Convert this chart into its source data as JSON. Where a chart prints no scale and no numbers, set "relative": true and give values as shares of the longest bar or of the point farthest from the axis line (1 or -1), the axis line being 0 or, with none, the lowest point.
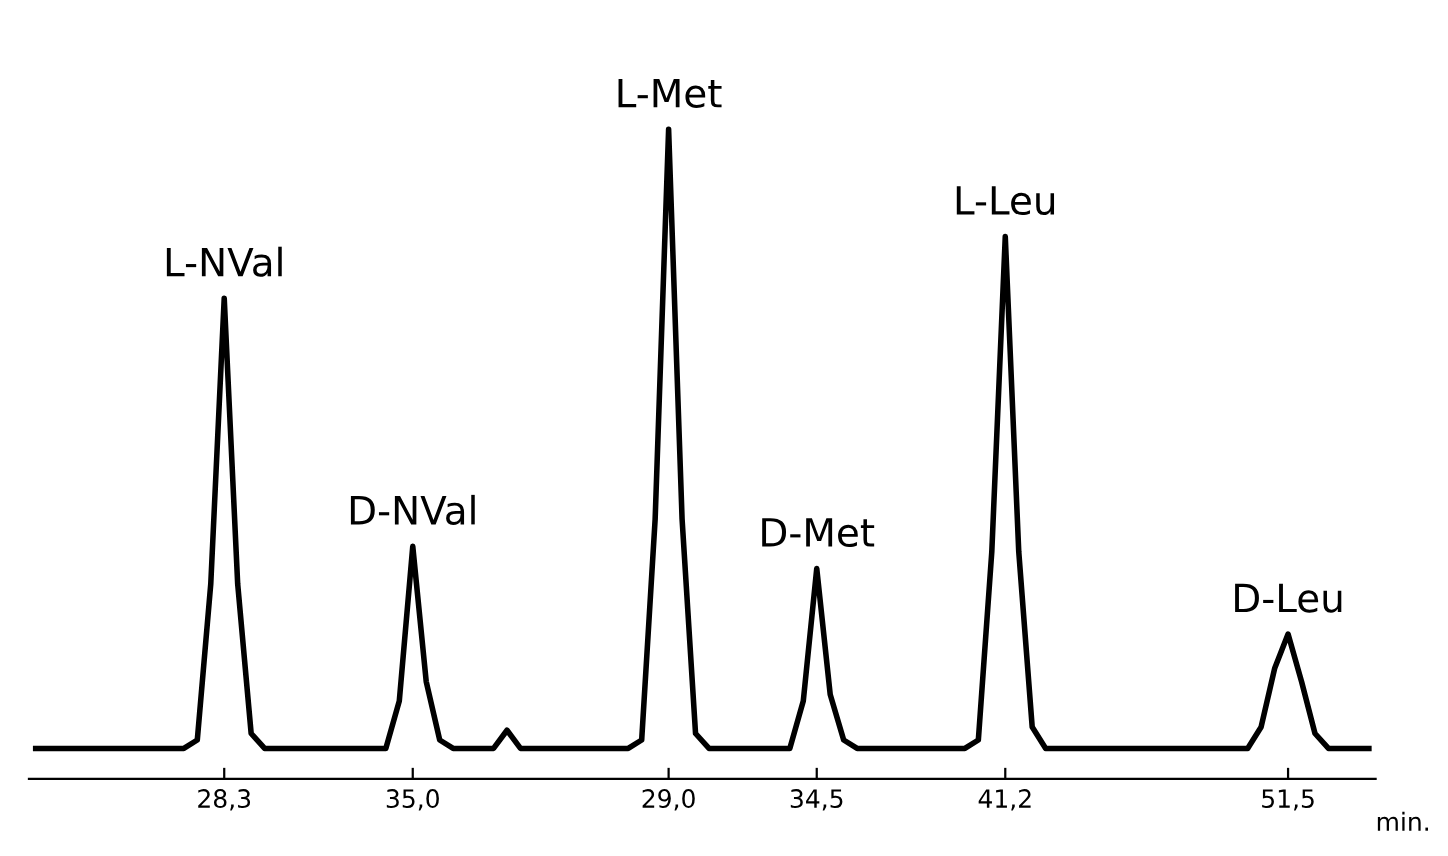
{
  "chart_data": {
    "type": "line",
    "relative": true,
    "xlabel": "min.",
    "categories": [
      null,
      null,
      null,
      null,
      null,
      null,
      null,
      null,
      null,
      null,
      null,
      null,
      null,
      null,
      "28,3",
      null,
      null,
      null,
      null,
      null,
      null,
      null,
      null,
      null,
      null,
      null,
      null,
      null,
      "35,0",
      null,
      null,
      null,
      null,
      null,
      null,
      null,
      null,
      null,
      null,
      null,
      null,
      null,
      null,
      null,
      null,
      null,
      null,
      "29,0",
      null,
      null,
      null,
      null,
      null,
      null,
      null,
      null,
      null,
      null,
      "34,5",
      null,
      null,
      null,
      null,
      null,
      null,
      null,
      null,
      null,
      null,
      null,
      null,
      null,
      "41,2",
      null,
      null,
      null,
      null,
      null,
      null,
      null,
      null,
      null,
      null,
      null,
      null,
      null,
      null,
      null,
      null,
      null,
      null,
      null,
      null,
      "51,5",
      null,
      null,
      null,
      null,
      null,
      null
    ],
    "grid": false,
    "legend": false,
    "line_style": "solid",
    "marker": "none",
    "series": [
      {
        "color": "#000000",
        "values": [
          0.047,
          0.047,
          0.047,
          0.047,
          0.047,
          0.047,
          0.047,
          0.047,
          0.047,
          0.047,
          0.047,
          0.047,
          0.06,
          0.3,
          0.74,
          0.3,
          0.07,
          0.047,
          0.047,
          0.047,
          0.047,
          0.047,
          0.047,
          0.047,
          0.047,
          0.047,
          0.047,
          0.12,
          0.358,
          0.15,
          0.06,
          0.047,
          0.047,
          0.047,
          0.047,
          0.075,
          0.047,
          0.047,
          0.047,
          0.047,
          0.047,
          0.047,
          0.047,
          0.047,
          0.047,
          0.06,
          0.4,
          1.0,
          0.4,
          0.07,
          0.047,
          0.047,
          0.047,
          0.047,
          0.047,
          0.047,
          0.047,
          0.12,
          0.324,
          0.13,
          0.06,
          0.047,
          0.047,
          0.047,
          0.047,
          0.047,
          0.047,
          0.047,
          0.047,
          0.047,
          0.06,
          0.35,
          0.835,
          0.35,
          0.08,
          0.047,
          0.047,
          0.047,
          0.047,
          0.047,
          0.047,
          0.047,
          0.047,
          0.047,
          0.047,
          0.047,
          0.047,
          0.047,
          0.047,
          0.047,
          0.047,
          0.08,
          0.17,
          0.223,
          0.15,
          0.07,
          0.047,
          0.047,
          0.047,
          0.047
        ]
      }
    ],
    "annotations": [
      {
        "text": "L-NVal",
        "x": "28,3",
        "y": 0.74
      },
      {
        "text": "D-NVal",
        "x": "35,0",
        "y": 0.358
      },
      {
        "text": "L-Met",
        "x": "29,0",
        "y": 1.0
      },
      {
        "text": "D-Met",
        "x": "34,5",
        "y": 0.324
      },
      {
        "text": "L-Leu",
        "x": "41,2",
        "y": 0.835
      },
      {
        "text": "D-Leu",
        "x": "51,5",
        "y": 0.223
      }
    ]
  }
}
